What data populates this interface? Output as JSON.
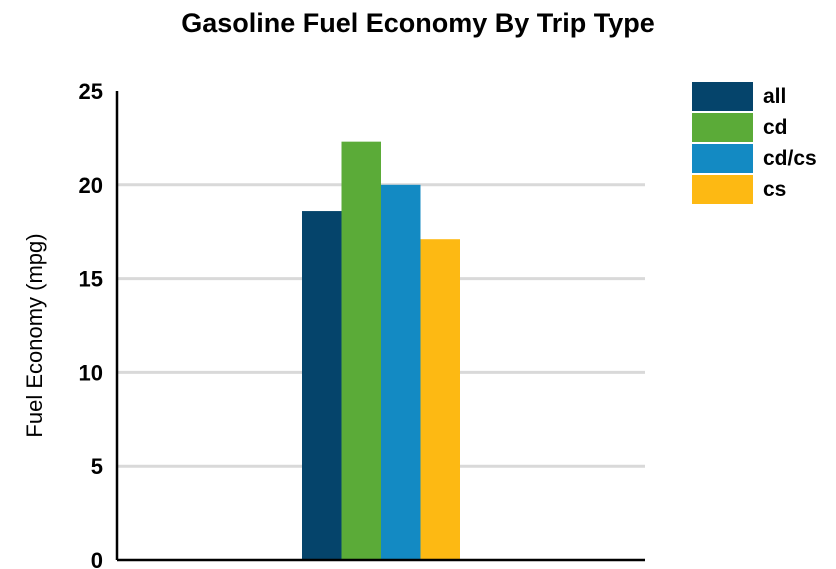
{
  "chart_data": {
    "type": "bar",
    "title": "Gasoline Fuel Economy By Trip Type",
    "xlabel": "",
    "ylabel": "Fuel Economy (mpg)",
    "ylim": [
      0,
      25
    ],
    "yticks": [
      0,
      5,
      10,
      15,
      20,
      25
    ],
    "grid": true,
    "legend_position": "top-right",
    "series": [
      {
        "name": "all",
        "value": 18.6,
        "color": "#05446B"
      },
      {
        "name": "cd",
        "value": 22.3,
        "color": "#5BAB38"
      },
      {
        "name": "cd/cs",
        "value": 20.0,
        "color": "#138AC3"
      },
      {
        "name": "cs",
        "value": 17.1,
        "color": "#FDB913"
      }
    ]
  }
}
